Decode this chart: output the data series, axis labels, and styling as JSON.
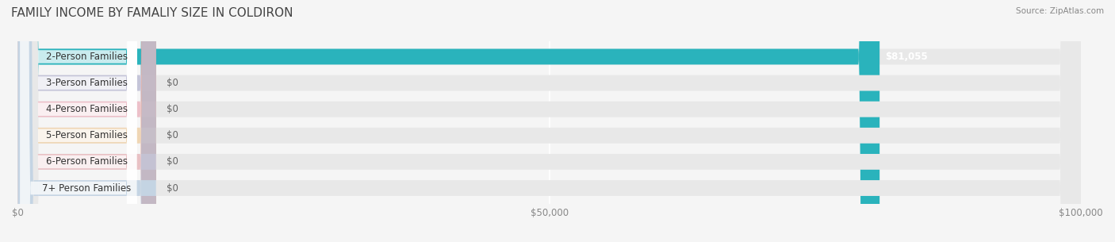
{
  "title": "FAMILY INCOME BY FAMALIY SIZE IN COLDIRON",
  "source": "Source: ZipAtlas.com",
  "categories": [
    "2-Person Families",
    "3-Person Families",
    "4-Person Families",
    "5-Person Families",
    "6-Person Families",
    "7+ Person Families"
  ],
  "values": [
    81055,
    0,
    0,
    0,
    0,
    0
  ],
  "bar_colors": [
    "#2ab3bc",
    "#a8a8cc",
    "#f0a0b0",
    "#f5c88a",
    "#e8a0a8",
    "#a8c4e0"
  ],
  "label_bg_colors": [
    "#2ab3bc",
    "#a8a8cc",
    "#f0a0b0",
    "#f5c88a",
    "#e8a0a8",
    "#a8c4e0"
  ],
  "value_labels": [
    "$81,055",
    "$0",
    "$0",
    "$0",
    "$0",
    "$0"
  ],
  "xlim": [
    0,
    100000
  ],
  "xticks": [
    0,
    50000,
    100000
  ],
  "xtick_labels": [
    "$0",
    "$50,000",
    "$100,000"
  ],
  "bar_height": 0.6,
  "bg_color": "#f5f5f5",
  "bar_bg_color": "#e8e8e8",
  "title_fontsize": 11,
  "label_fontsize": 8.5,
  "value_fontsize": 8.5
}
